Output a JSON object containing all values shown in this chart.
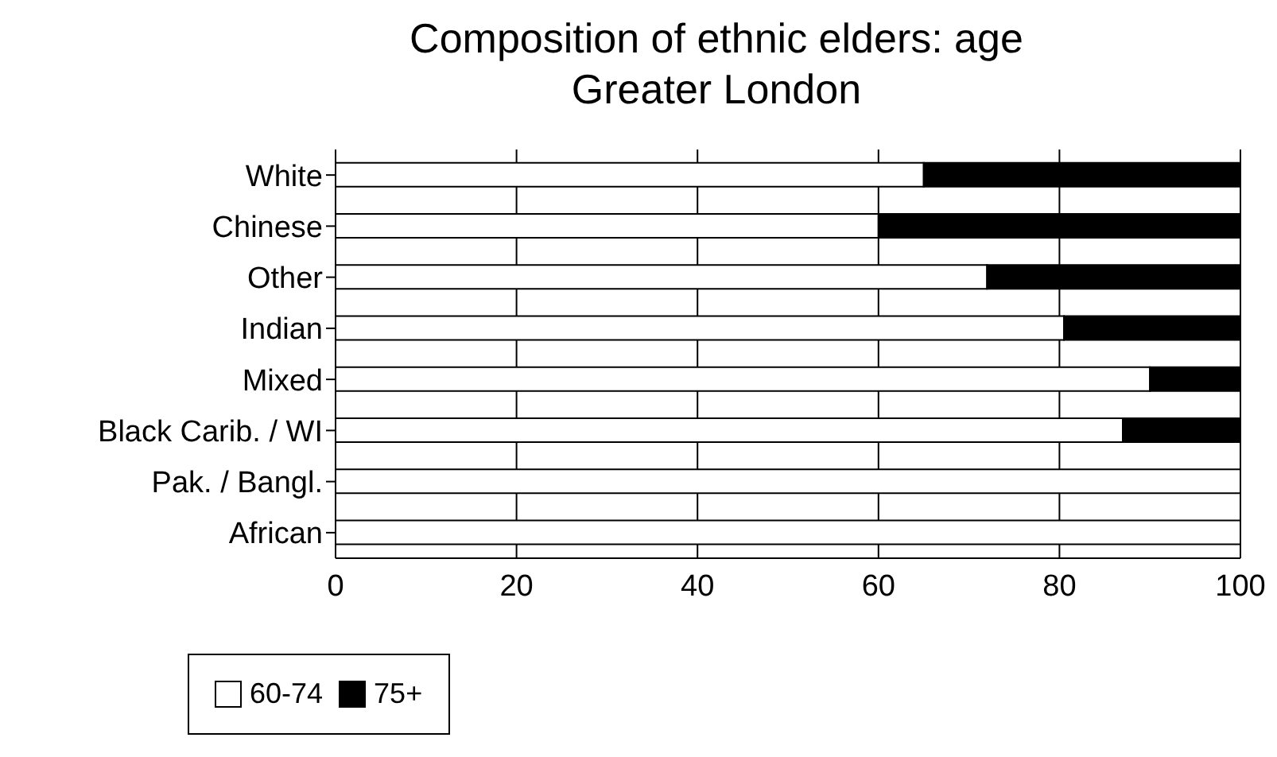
{
  "chart_data": {
    "type": "bar",
    "title": "Composition of ethnic elders: age",
    "subtitle": "Greater London",
    "orientation": "horizontal",
    "stacked": true,
    "categories": [
      "White",
      "Chinese",
      "Other",
      "Indian",
      "Mixed",
      "Black Carib. / WI",
      "Pak. / Bangl.",
      "African"
    ],
    "series": [
      {
        "name": "60-74",
        "color": "#ffffff",
        "values": [
          65,
          60,
          72,
          80.5,
          90,
          87,
          100,
          100
        ]
      },
      {
        "name": "75+",
        "color": "#000000",
        "values": [
          35,
          40,
          28,
          19.5,
          10,
          13,
          0,
          0
        ]
      }
    ],
    "xlim": [
      0,
      100
    ],
    "xticks": [
      0,
      20,
      40,
      60,
      80,
      100
    ],
    "grid": "x",
    "legend": "bottom"
  }
}
